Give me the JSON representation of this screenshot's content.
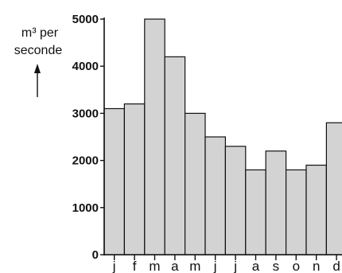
{
  "chart_data": {
    "type": "bar",
    "categories": [
      "j",
      "f",
      "m",
      "a",
      "m",
      "j",
      "j",
      "a",
      "s",
      "o",
      "n",
      "d"
    ],
    "values": [
      3100,
      3200,
      5000,
      4200,
      3000,
      2500,
      2300,
      1800,
      2200,
      1800,
      1900,
      2800
    ],
    "ylabel": "m³ per seconde",
    "ylabel_line1": "m³ per",
    "ylabel_line2": "seconde",
    "ylim": [
      0,
      5000
    ],
    "yticks": [
      0,
      1000,
      2000,
      3000,
      4000,
      5000
    ],
    "ytick_labels": [
      "0",
      "1000",
      "2000",
      "3000",
      "4000",
      "5000"
    ],
    "grid": false,
    "bar_fill": "#d3d3d3",
    "bar_stroke": "#111111"
  }
}
